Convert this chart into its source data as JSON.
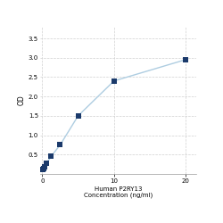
{
  "x": [
    0.078,
    0.156,
    0.313,
    0.625,
    1.25,
    2.5,
    5,
    10,
    20
  ],
  "y": [
    0.105,
    0.13,
    0.18,
    0.28,
    0.46,
    0.75,
    1.5,
    2.4,
    2.95
  ],
  "line_color": "#aecde1",
  "marker_color": "#1b3a6b",
  "marker_size": 4,
  "xlabel_line1": "Human P2RY13",
  "xlabel_line2": "Concentration (ng/ml)",
  "ylabel": "OD",
  "xlim": [
    -0.3,
    21.5
  ],
  "ylim": [
    0.0,
    3.8
  ],
  "yticks": [
    0.5,
    1.0,
    1.5,
    2.0,
    2.5,
    3.0,
    3.5
  ],
  "xticks": [
    0,
    10,
    20
  ],
  "xtick_labels": [
    "0",
    "10",
    "20"
  ],
  "grid_color": "#d0d0d0",
  "bg_color": "#ffffff",
  "xlabel_fontsize": 5.0,
  "ylabel_fontsize": 5.5,
  "tick_fontsize": 5.0,
  "linewidth": 1.0
}
